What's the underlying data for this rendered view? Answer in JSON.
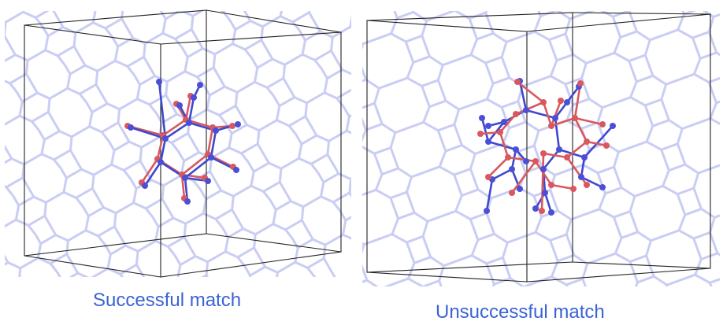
{
  "panels": [
    {
      "caption": "Successful match"
    },
    {
      "caption": "Unsuccessful match"
    }
  ],
  "colors": {
    "lattice": "#c9cdf3",
    "box_edge": "#222222",
    "atom_blue": "#4b4fd8",
    "atom_red": "#d9585e",
    "bond_blue": "#3f48cc",
    "bond_red": "#d9585e",
    "caption": "#3a63d6"
  }
}
